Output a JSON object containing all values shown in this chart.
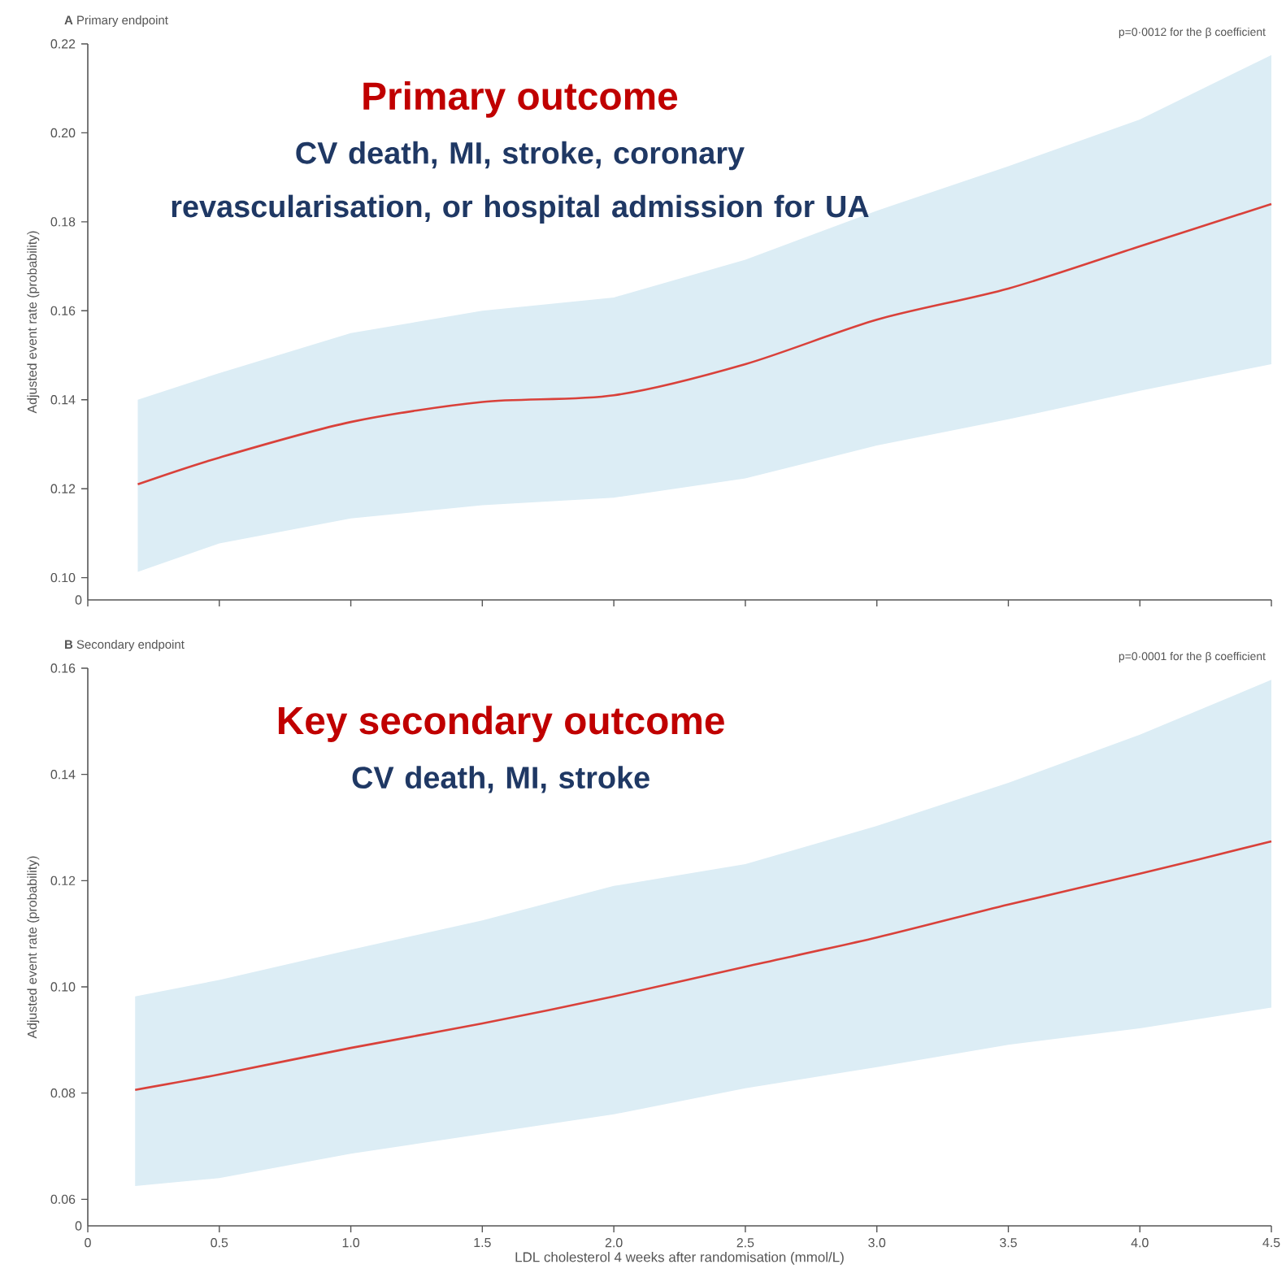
{
  "chart_data": [
    {
      "type": "line",
      "title": "**A** Primary endpoint",
      "ylabel": "Adjusted event rate (probability)",
      "x": [
        0.19,
        0.5,
        1.0,
        1.5,
        2.0,
        2.5,
        3.0,
        3.5,
        4.0,
        4.5
      ],
      "series": [
        {
          "color": "#d9413a",
          "values": [
            0.121,
            0.127,
            0.135,
            0.1395,
            0.141,
            0.148,
            0.158,
            0.165,
            0.1745,
            0.184
          ],
          "lower": [
            0.1013,
            0.1077,
            0.1133,
            0.1163,
            0.118,
            0.1223,
            0.1297,
            0.1356,
            0.142,
            0.148
          ],
          "upper": [
            0.14,
            0.146,
            0.155,
            0.16,
            0.163,
            0.1715,
            0.1825,
            0.1925,
            0.203,
            0.2175
          ]
        }
      ],
      "xlim": [
        0,
        4.5
      ],
      "xticks": [
        {
          "value": 0,
          "label": null
        },
        {
          "value": 0.5,
          "label": null
        },
        {
          "value": 1.0,
          "label": null
        },
        {
          "value": 1.5,
          "label": null
        },
        {
          "value": 2.0,
          "label": null
        },
        {
          "value": 2.5,
          "label": null
        },
        {
          "value": 3.0,
          "label": null
        },
        {
          "value": 3.5,
          "label": null
        },
        {
          "value": 4.0,
          "label": null
        },
        {
          "value": 4.5,
          "label": null
        }
      ],
      "ylim": [
        0.095,
        0.22
      ],
      "yticks": [
        {
          "value": 0.1,
          "label": "0.10"
        },
        {
          "value": 0.12,
          "label": "0.12"
        },
        {
          "value": 0.14,
          "label": "0.14"
        },
        {
          "value": 0.16,
          "label": "0.16"
        },
        {
          "value": 0.18,
          "label": "0.18"
        },
        {
          "value": 0.2,
          "label": "0.20"
        },
        {
          "value": 0.22,
          "label": "0.22"
        }
      ],
      "tick_labels": "y",
      "annotations": [
        "p=0·0012 for the β coefficient",
        "Primary outcome",
        "CV death, MI, stroke, coronary revascularisation, or hospital admission for UA",
        "0"
      ]
    },
    {
      "type": "line",
      "title": "**B** Secondary endpoint",
      "ylabel": "Adjusted event rate (probability)",
      "xlabel": "LDL cholesterol 4 weeks after randomisation (mmol/L)",
      "x": [
        0.18,
        0.5,
        1.0,
        1.5,
        2.0,
        2.5,
        3.0,
        3.5,
        4.0,
        4.5
      ],
      "series": [
        {
          "color": "#d9413a",
          "values": [
            0.0806,
            0.0835,
            0.0885,
            0.0931,
            0.0982,
            0.1038,
            0.1093,
            0.1155,
            0.1213,
            0.1274
          ],
          "lower": [
            0.0625,
            0.064,
            0.0686,
            0.0723,
            0.076,
            0.0809,
            0.0849,
            0.0891,
            0.0922,
            0.0961
          ],
          "upper": [
            0.0982,
            0.1013,
            0.107,
            0.1125,
            0.119,
            0.1231,
            0.1303,
            0.1384,
            0.1475,
            0.1578
          ]
        }
      ],
      "xlim": [
        0,
        4.5
      ],
      "xticks": [
        0,
        {
          "value": 0.5,
          "label": "0.5"
        },
        {
          "value": 1.0,
          "label": "1.0"
        },
        {
          "value": 1.5,
          "label": "1.5"
        },
        {
          "value": 2.0,
          "label": "2.0"
        },
        {
          "value": 2.5,
          "label": "2.5"
        },
        {
          "value": 3.0,
          "label": "3.0"
        },
        {
          "value": 3.5,
          "label": "3.5"
        },
        {
          "value": 4.0,
          "label": "4.0"
        },
        {
          "value": 4.5,
          "label": "4.5"
        }
      ],
      "ylim": [
        0.055,
        0.16
      ],
      "yticks": [
        {
          "value": 0.06,
          "label": "0.06"
        },
        {
          "value": 0.08,
          "label": "0.08"
        },
        {
          "value": 0.1,
          "label": "0.10"
        },
        {
          "value": 0.12,
          "label": "0.12"
        },
        {
          "value": 0.14,
          "label": "0.14"
        },
        {
          "value": 0.16,
          "label": "0.16"
        }
      ],
      "annotations": [
        "p=0·0001 for the β coefficient",
        "Key secondary outcome",
        "CV death, MI, stroke",
        "0"
      ]
    }
  ]
}
